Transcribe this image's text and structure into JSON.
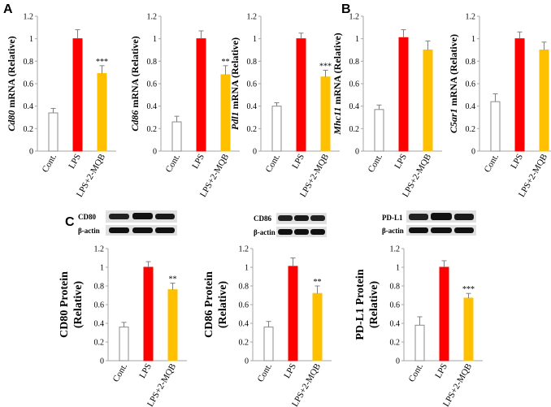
{
  "panel_labels": [
    "A",
    "B",
    "C"
  ],
  "colors": {
    "control": "#ffffff",
    "lps": "#ff0000",
    "treated": "#ffc000",
    "axis": "#a6a6a6",
    "error": "#808080"
  },
  "blots": [
    {
      "protein": "CD80",
      "loading": "β-actin"
    },
    {
      "protein": "CD86",
      "loading": "β-actin"
    },
    {
      "protein": "PD-L1",
      "loading": "β-actin"
    }
  ],
  "chart_data": [
    {
      "type": "bar",
      "panel": "A",
      "ylabel_italic": "Cd80",
      "ylabel_rest": " mRNA (Relative)",
      "categories": [
        "Cont.",
        "LPS",
        "LPS+2-MQB"
      ],
      "values": [
        0.34,
        1.0,
        0.69
      ],
      "errors": [
        0.04,
        0.08,
        0.07
      ],
      "significance": [
        "",
        "",
        "***"
      ],
      "ylim": [
        0,
        1.2
      ],
      "yticks": [
        "0",
        "0.2",
        "0.4",
        "0.6",
        "0.8",
        "1",
        "1.2"
      ]
    },
    {
      "type": "bar",
      "panel": "A",
      "ylabel_italic": "Cd86",
      "ylabel_rest": " mRNA (Relative)",
      "categories": [
        "Cont.",
        "LPS",
        "LPS+2-MQB"
      ],
      "values": [
        0.26,
        1.0,
        0.68
      ],
      "errors": [
        0.05,
        0.07,
        0.08
      ],
      "significance": [
        "",
        "",
        "**"
      ],
      "ylim": [
        0,
        1.2
      ],
      "yticks": [
        "0",
        "0.2",
        "0.4",
        "0.6",
        "0.8",
        "1",
        "1.2"
      ]
    },
    {
      "type": "bar",
      "panel": "A",
      "ylabel_italic": "Pdl1",
      "ylabel_rest": " mRNA (Relative)",
      "categories": [
        "Cont.",
        "LPS",
        "LPS+2-MQB"
      ],
      "values": [
        0.4,
        1.0,
        0.66
      ],
      "errors": [
        0.03,
        0.05,
        0.06
      ],
      "significance": [
        "",
        "",
        "***"
      ],
      "ylim": [
        0,
        1.2
      ],
      "yticks": [
        "0",
        "0.2",
        "0.4",
        "0.6",
        "0.8",
        "1",
        "1.2"
      ]
    },
    {
      "type": "bar",
      "panel": "B",
      "ylabel_italic": "Mhc11",
      "ylabel_rest": " mRNA (Relative)",
      "categories": [
        "Cont.",
        "LPS",
        "LPS+2-MQB"
      ],
      "values": [
        0.37,
        1.01,
        0.9
      ],
      "errors": [
        0.04,
        0.07,
        0.08
      ],
      "significance": [
        "",
        "",
        ""
      ],
      "ylim": [
        0,
        1.2
      ],
      "yticks": [
        "0",
        "0.2",
        "0.4",
        "0.6",
        "0.8",
        "1",
        "1.2"
      ]
    },
    {
      "type": "bar",
      "panel": "B",
      "ylabel_italic": "C5ar1",
      "ylabel_rest": " mRNA (Relative)",
      "categories": [
        "Cont.",
        "LPS",
        "LPS+2-MQB"
      ],
      "values": [
        0.44,
        1.0,
        0.9
      ],
      "errors": [
        0.07,
        0.06,
        0.07
      ],
      "significance": [
        "",
        "",
        ""
      ],
      "ylim": [
        0,
        1.2
      ],
      "yticks": [
        "0",
        "0.2",
        "0.4",
        "0.6",
        "0.8",
        "1",
        "1.2"
      ]
    },
    {
      "type": "bar",
      "panel": "C",
      "ylabel_line1": "CD80 Protein",
      "ylabel_line2": "(Relative)",
      "categories": [
        "Cont.",
        "LPS",
        "LPS+2-MQB"
      ],
      "values": [
        0.36,
        1.0,
        0.76
      ],
      "errors": [
        0.05,
        0.06,
        0.07
      ],
      "significance": [
        "",
        "",
        "**"
      ],
      "ylim": [
        0,
        1.2
      ],
      "yticks": [
        "0",
        "0.2",
        "0.4",
        "0.6",
        "0.8",
        "1",
        "1.2"
      ]
    },
    {
      "type": "bar",
      "panel": "C",
      "ylabel_line1": "CD86 Protein",
      "ylabel_line2": "(Relative)",
      "categories": [
        "Cont.",
        "LPS",
        "LPS+2-MQB"
      ],
      "values": [
        0.36,
        1.01,
        0.72
      ],
      "errors": [
        0.06,
        0.09,
        0.08
      ],
      "significance": [
        "",
        "",
        "**"
      ],
      "ylim": [
        0,
        1.2
      ],
      "yticks": [
        "0",
        "0.2",
        "0.4",
        "0.6",
        "0.8",
        "1",
        "1.2"
      ]
    },
    {
      "type": "bar",
      "panel": "C",
      "ylabel_line1": "PD-L1 Protein",
      "ylabel_line2": "(Relative)",
      "categories": [
        "Cont.",
        "LPS",
        "LPS+2-MQB"
      ],
      "values": [
        0.38,
        1.0,
        0.67
      ],
      "errors": [
        0.09,
        0.07,
        0.05
      ],
      "significance": [
        "",
        "",
        "***"
      ],
      "ylim": [
        0,
        1.2
      ],
      "yticks": [
        "0",
        "0.2",
        "0.4",
        "0.6",
        "0.8",
        "1",
        "1.2"
      ]
    }
  ]
}
